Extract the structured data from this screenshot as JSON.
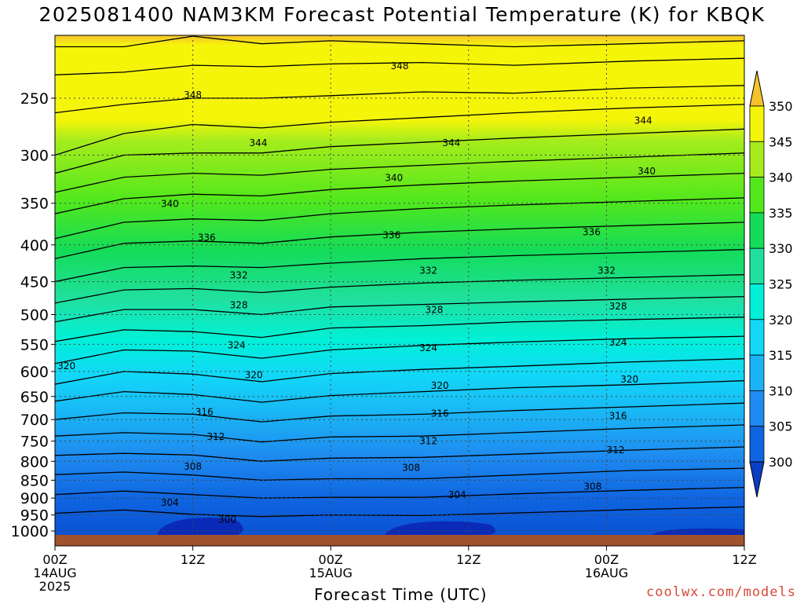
{
  "title": "2025081400 NAM3KM Forecast Potential Temperature (K) for KBQK",
  "credit": "coolwx.com/models",
  "chart_data": {
    "type": "contour",
    "variable": "Potential Temperature",
    "units": "K",
    "xlabel": "Forecast Time (UTC)",
    "x_ticks": [
      {
        "hour": 0,
        "line1": "00Z",
        "line2": "14AUG",
        "line3": "2025"
      },
      {
        "hour": 12,
        "line1": "12Z",
        "line2": "",
        "line3": ""
      },
      {
        "hour": 24,
        "line1": "00Z",
        "line2": "15AUG",
        "line3": ""
      },
      {
        "hour": 36,
        "line1": "12Z",
        "line2": "",
        "line3": ""
      },
      {
        "hour": 48,
        "line1": "00Z",
        "line2": "16AUG",
        "line3": ""
      },
      {
        "hour": 60,
        "line1": "12Z",
        "line2": "",
        "line3": ""
      }
    ],
    "xlim": [
      0,
      60
    ],
    "y_ticks": [
      250,
      300,
      350,
      400,
      450,
      500,
      550,
      600,
      650,
      700,
      750,
      800,
      850,
      900,
      950,
      1000
    ],
    "ylim": [
      1020,
      200
    ],
    "y_scale": "log",
    "grid": true,
    "colorbar": {
      "levels": [
        300,
        305,
        310,
        315,
        320,
        325,
        330,
        335,
        340,
        345,
        350
      ],
      "colors": [
        "#0a3ec4",
        "#0f64e0",
        "#1e8cf0",
        "#1ab4f5",
        "#12d8f8",
        "#00f0d8",
        "#20e0a0",
        "#14dc58",
        "#52e81c",
        "#a6ec1c",
        "#f5f50a",
        "#f5c22c"
      ],
      "extend": "both"
    },
    "contour_labels": [
      {
        "value": 348,
        "hour": 12.0,
        "p": 247
      },
      {
        "value": 348,
        "hour": 30.0,
        "p": 225
      },
      {
        "value": 344,
        "hour": 17.7,
        "p": 288
      },
      {
        "value": 344,
        "hour": 34.5,
        "p": 288
      },
      {
        "value": 344,
        "hour": 51.2,
        "p": 268
      },
      {
        "value": 340,
        "hour": 10.0,
        "p": 350
      },
      {
        "value": 340,
        "hour": 29.5,
        "p": 322
      },
      {
        "value": 340,
        "hour": 51.5,
        "p": 315
      },
      {
        "value": 336,
        "hour": 13.2,
        "p": 390
      },
      {
        "value": 336,
        "hour": 29.3,
        "p": 387
      },
      {
        "value": 336,
        "hour": 46.7,
        "p": 383
      },
      {
        "value": 332,
        "hour": 16.0,
        "p": 440
      },
      {
        "value": 332,
        "hour": 32.5,
        "p": 433
      },
      {
        "value": 332,
        "hour": 48.0,
        "p": 433
      },
      {
        "value": 328,
        "hour": 16.0,
        "p": 484
      },
      {
        "value": 328,
        "hour": 33.0,
        "p": 491
      },
      {
        "value": 328,
        "hour": 49.0,
        "p": 486
      },
      {
        "value": 324,
        "hour": 15.8,
        "p": 550
      },
      {
        "value": 324,
        "hour": 32.5,
        "p": 555
      },
      {
        "value": 324,
        "hour": 49.0,
        "p": 545
      },
      {
        "value": 320,
        "hour": 1.0,
        "p": 588
      },
      {
        "value": 320,
        "hour": 17.3,
        "p": 605
      },
      {
        "value": 320,
        "hour": 33.5,
        "p": 626
      },
      {
        "value": 320,
        "hour": 50.0,
        "p": 614
      },
      {
        "value": 316,
        "hour": 13.0,
        "p": 681
      },
      {
        "value": 316,
        "hour": 33.5,
        "p": 685
      },
      {
        "value": 316,
        "hour": 49.0,
        "p": 690
      },
      {
        "value": 312,
        "hour": 14.0,
        "p": 738
      },
      {
        "value": 312,
        "hour": 32.5,
        "p": 748
      },
      {
        "value": 312,
        "hour": 48.8,
        "p": 770
      },
      {
        "value": 308,
        "hour": 12.0,
        "p": 812
      },
      {
        "value": 308,
        "hour": 31.0,
        "p": 815
      },
      {
        "value": 308,
        "hour": 46.8,
        "p": 865
      },
      {
        "value": 304,
        "hour": 10.0,
        "p": 911
      },
      {
        "value": 304,
        "hour": 35.0,
        "p": 888
      },
      {
        "value": 300,
        "hour": 15.0,
        "p": 962
      }
    ]
  }
}
